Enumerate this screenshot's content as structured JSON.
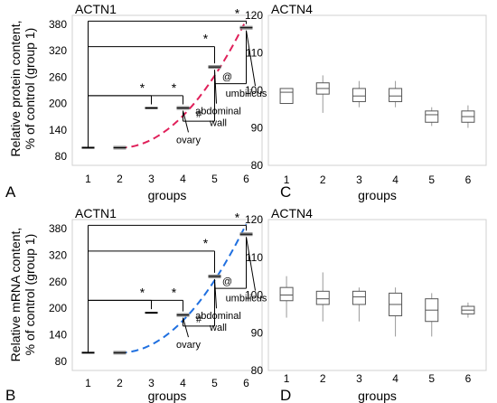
{
  "chart_data": [
    {
      "panel_label": "A",
      "type": "box",
      "title": "ACTN1",
      "xlabel": "groups",
      "ylabel": "Relative protein content, % of control (group 1)",
      "yticks": [
        80,
        140,
        200,
        260,
        320,
        380
      ],
      "ylim": [
        60,
        400
      ],
      "categories": [
        "1",
        "2",
        "3",
        "4",
        "5",
        "6"
      ],
      "values": [
        100,
        100,
        190,
        190,
        283,
        372
      ],
      "trend": {
        "color": "#e0205a",
        "start_value": 100,
        "end_value": 390
      },
      "significance": [
        {
          "from": "1",
          "to": "3",
          "mark": "*"
        },
        {
          "from": "1",
          "to": "4",
          "mark": "*"
        },
        {
          "from": "1",
          "to": "5",
          "mark": "*"
        },
        {
          "from": "1",
          "to": "6",
          "mark": "*"
        },
        {
          "from": "4",
          "to": "5",
          "mark": "#"
        },
        {
          "from": "5",
          "to": "6",
          "mark": "@"
        }
      ],
      "annotations": {
        "ovary": "ovary",
        "abdominal": "abdominal",
        "wall": "wall",
        "umbilicus": "umbilicus"
      }
    },
    {
      "panel_label": "C",
      "type": "box",
      "title": "ACTN4",
      "xlabel": "groups",
      "yticks": [
        80,
        90,
        100,
        110,
        120
      ],
      "ylim": [
        80,
        120
      ],
      "categories": [
        "1",
        "2",
        "3",
        "4",
        "5",
        "6"
      ],
      "boxes": [
        {
          "min": 96.5,
          "q1": 96.5,
          "median": 99.5,
          "q3": 100.5,
          "max": 100.5
        },
        {
          "min": 94,
          "q1": 99,
          "median": 100.5,
          "q3": 102,
          "max": 104
        },
        {
          "min": 95.5,
          "q1": 97,
          "median": 98.5,
          "q3": 100.5,
          "max": 102.5
        },
        {
          "min": 95.5,
          "q1": 97,
          "median": 98.5,
          "q3": 100.5,
          "max": 102.5
        },
        {
          "min": 90.5,
          "q1": 91.5,
          "median": 93.5,
          "q3": 94.5,
          "max": 95.5
        },
        {
          "min": 90,
          "q1": 91.5,
          "median": 93,
          "q3": 94.5,
          "max": 96
        }
      ]
    },
    {
      "panel_label": "B",
      "type": "box",
      "title": "ACTN1",
      "xlabel": "groups",
      "ylabel": "Relative mRNA content, % of control (group 1)",
      "yticks": [
        80,
        140,
        200,
        260,
        320,
        380
      ],
      "ylim": [
        60,
        400
      ],
      "categories": [
        "1",
        "2",
        "3",
        "4",
        "5",
        "6"
      ],
      "values": [
        100,
        100,
        190,
        185,
        272,
        367
      ],
      "trend": {
        "color": "#2070e0",
        "start_value": 100,
        "end_value": 390
      },
      "significance": [
        {
          "from": "1",
          "to": "3",
          "mark": "*"
        },
        {
          "from": "1",
          "to": "4",
          "mark": "*"
        },
        {
          "from": "1",
          "to": "5",
          "mark": "*"
        },
        {
          "from": "1",
          "to": "6",
          "mark": "*"
        },
        {
          "from": "4",
          "to": "5",
          "mark": "#"
        },
        {
          "from": "5",
          "to": "6",
          "mark": "@"
        }
      ],
      "annotations": {
        "ovary": "ovary",
        "abdominal": "abdominal",
        "wall": "wall",
        "umbilicus": "umbilicus"
      }
    },
    {
      "panel_label": "D",
      "type": "box",
      "title": "ACTN4",
      "xlabel": "groups",
      "yticks": [
        80,
        90,
        100,
        110,
        120
      ],
      "ylim": [
        80,
        120
      ],
      "categories": [
        "1",
        "2",
        "3",
        "4",
        "5",
        "6"
      ],
      "boxes": [
        {
          "min": 94,
          "q1": 98.5,
          "median": 100,
          "q3": 102,
          "max": 105
        },
        {
          "min": 93,
          "q1": 97.5,
          "median": 99,
          "q3": 101,
          "max": 106
        },
        {
          "min": 93,
          "q1": 97.5,
          "median": 99.5,
          "q3": 101,
          "max": 102
        },
        {
          "min": 89,
          "q1": 94.5,
          "median": 97.5,
          "q3": 100.5,
          "max": 102
        },
        {
          "min": 89,
          "q1": 93,
          "median": 96,
          "q3": 99,
          "max": 100.5
        },
        {
          "min": 94,
          "q1": 95,
          "median": 96,
          "q3": 97,
          "max": 98
        }
      ]
    }
  ],
  "colors": {
    "box_fill": "#ffffff",
    "box_stroke": "#555555",
    "whisker": "#999999",
    "bar_grey": "#8c8c8c"
  }
}
